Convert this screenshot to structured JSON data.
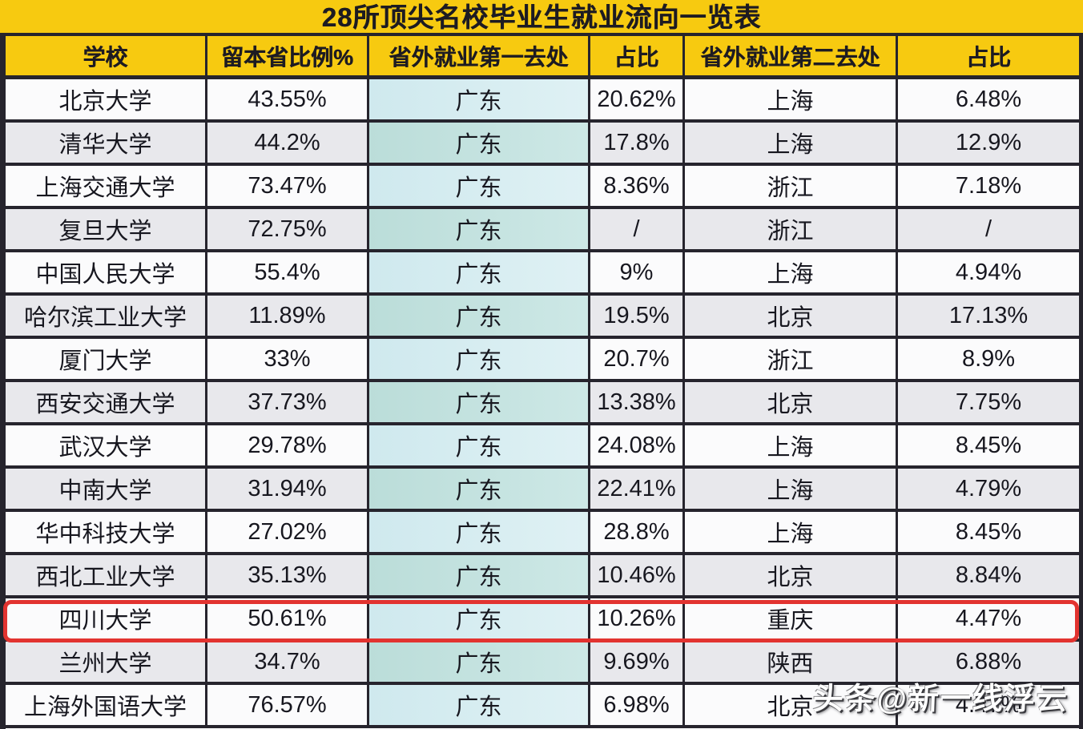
{
  "title": "28所顶尖名校毕业生就业流向一览表",
  "watermark": "头条@新一线浮云",
  "colors": {
    "title_background": "#F7CA10",
    "header_background": "#F7CA10",
    "border": "#26242D",
    "row_white": "#FBFBFC",
    "row_gray": "#E8E8EC",
    "destination_cell_light": "#D9EDF2",
    "destination_cell_dark": "#C4E2DF",
    "highlight_red": "#E23330",
    "text": "#17171F",
    "watermark_text": "#FFFFFF"
  },
  "chart_data": {
    "type": "table",
    "title": "28所顶尖名校毕业生就业流向一览表",
    "columns": [
      "学校",
      "留本省比例%",
      "省外就业第一去处",
      "占比",
      "省外就业第二去处",
      "占比"
    ],
    "rows": [
      [
        "北京大学",
        "43.55%",
        "广东",
        "20.62%",
        "上海",
        "6.48%"
      ],
      [
        "清华大学",
        "44.2%",
        "广东",
        "17.8%",
        "上海",
        "12.9%"
      ],
      [
        "上海交通大学",
        "73.47%",
        "广东",
        "8.36%",
        "浙江",
        "7.18%"
      ],
      [
        "复旦大学",
        "72.75%",
        "广东",
        "/",
        "浙江",
        "/"
      ],
      [
        "中国人民大学",
        "55.4%",
        "广东",
        "9%",
        "上海",
        "4.94%"
      ],
      [
        "哈尔滨工业大学",
        "11.89%",
        "广东",
        "19.5%",
        "北京",
        "17.13%"
      ],
      [
        "厦门大学",
        "33%",
        "广东",
        "20.7%",
        "浙江",
        "8.9%"
      ],
      [
        "西安交通大学",
        "37.73%",
        "广东",
        "13.38%",
        "北京",
        "7.75%"
      ],
      [
        "武汉大学",
        "29.78%",
        "广东",
        "24.08%",
        "上海",
        "8.45%"
      ],
      [
        "中南大学",
        "31.94%",
        "广东",
        "22.41%",
        "上海",
        "4.79%"
      ],
      [
        "华中科技大学",
        "27.02%",
        "广东",
        "28.8%",
        "上海",
        "8.45%"
      ],
      [
        "西北工业大学",
        "35.13%",
        "广东",
        "10.46%",
        "北京",
        "8.84%"
      ],
      [
        "四川大学",
        "50.61%",
        "广东",
        "10.26%",
        "重庆",
        "4.47%"
      ],
      [
        "兰州大学",
        "34.7%",
        "广东",
        "9.69%",
        "陕西",
        "6.88%"
      ],
      [
        "上海外国语大学",
        "76.57%",
        "广东",
        "6.98%",
        "北京",
        "4.47%"
      ]
    ],
    "highlighted_row_index": 12,
    "highlighted_row_school": "四川大学",
    "layout": {
      "destination_column_indices": [
        2
      ],
      "alternating_row_shading": true,
      "grid": true
    }
  }
}
